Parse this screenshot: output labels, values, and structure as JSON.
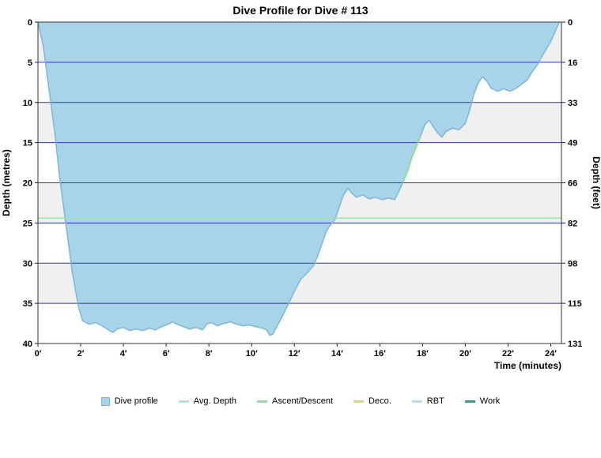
{
  "window": {
    "title": "Dive Profile for Dive # 113"
  },
  "chart_data": {
    "type": "area",
    "title": "Dive Profile for Dive # 113",
    "xlabel": "Time (minutes)",
    "ylabel_left": "Depth (metres)",
    "ylabel_right": "Depth (feet)",
    "xlim": [
      0,
      24.5
    ],
    "ylim": [
      0,
      40
    ],
    "x_ticks": {
      "values": [
        0,
        2,
        4,
        6,
        8,
        10,
        12,
        14,
        16,
        18,
        20,
        22,
        24
      ],
      "suffix": "′"
    },
    "y_ticks_left": [
      0,
      5,
      10,
      15,
      20,
      25,
      30,
      35,
      40
    ],
    "y_ticks_right": {
      "values_feet": [
        0,
        16,
        33,
        49,
        66,
        82,
        98,
        115,
        131
      ],
      "at_metres": [
        0,
        5,
        10,
        15,
        20,
        25,
        30,
        35,
        40
      ]
    },
    "grid": {
      "line_color": "#3333b3",
      "band_color": "#f0f0f0",
      "band_ranges_metres": [
        [
          0,
          5
        ],
        [
          10,
          15
        ],
        [
          20,
          25
        ],
        [
          30,
          35
        ]
      ],
      "border_color": "#333333"
    },
    "series": [
      {
        "name": "Dive profile",
        "type": "area",
        "fill": "#a8d4ea",
        "stroke": "#7db6d6",
        "points": [
          [
            0,
            0
          ],
          [
            0.25,
            3
          ],
          [
            0.5,
            8
          ],
          [
            0.8,
            14
          ],
          [
            1,
            19
          ],
          [
            1.3,
            25
          ],
          [
            1.6,
            31
          ],
          [
            1.9,
            35.5
          ],
          [
            2.1,
            37.2
          ],
          [
            2.4,
            37.6
          ],
          [
            2.7,
            37.4
          ],
          [
            3,
            37.8
          ],
          [
            3.3,
            38.3
          ],
          [
            3.5,
            38.6
          ],
          [
            3.7,
            38.2
          ],
          [
            4,
            38
          ],
          [
            4.3,
            38.4
          ],
          [
            4.6,
            38.2
          ],
          [
            4.9,
            38.4
          ],
          [
            5.2,
            38.1
          ],
          [
            5.5,
            38.3
          ],
          [
            5.8,
            37.9
          ],
          [
            6.1,
            37.6
          ],
          [
            6.3,
            37.3
          ],
          [
            6.5,
            37.6
          ],
          [
            6.8,
            37.9
          ],
          [
            7.1,
            38.2
          ],
          [
            7.4,
            38
          ],
          [
            7.7,
            38.3
          ],
          [
            7.9,
            37.6
          ],
          [
            8.1,
            37.4
          ],
          [
            8.4,
            37.8
          ],
          [
            8.7,
            37.5
          ],
          [
            9,
            37.3
          ],
          [
            9.3,
            37.6
          ],
          [
            9.6,
            37.8
          ],
          [
            9.9,
            37.7
          ],
          [
            10.2,
            37.9
          ],
          [
            10.5,
            38.1
          ],
          [
            10.7,
            38.3
          ],
          [
            10.85,
            39
          ],
          [
            11,
            38.8
          ],
          [
            11.2,
            37.8
          ],
          [
            11.4,
            36.8
          ],
          [
            11.7,
            35.2
          ],
          [
            12,
            33.5
          ],
          [
            12.3,
            32
          ],
          [
            12.6,
            31.2
          ],
          [
            12.9,
            30.3
          ],
          [
            13.1,
            29
          ],
          [
            13.3,
            27.5
          ],
          [
            13.5,
            26
          ],
          [
            13.7,
            25.2
          ],
          [
            13.9,
            24.6
          ],
          [
            14.1,
            23
          ],
          [
            14.3,
            21.5
          ],
          [
            14.5,
            20.7
          ],
          [
            14.7,
            21.3
          ],
          [
            14.9,
            21.8
          ],
          [
            15.2,
            21.5
          ],
          [
            15.5,
            22
          ],
          [
            15.8,
            21.8
          ],
          [
            16.1,
            22.1
          ],
          [
            16.4,
            21.9
          ],
          [
            16.7,
            22.1
          ],
          [
            16.9,
            21
          ],
          [
            17.1,
            19.8
          ],
          [
            17.3,
            18.5
          ],
          [
            17.5,
            16.8
          ],
          [
            17.7,
            15.5
          ],
          [
            17.9,
            14.2
          ],
          [
            18.1,
            12.8
          ],
          [
            18.3,
            12.2
          ],
          [
            18.5,
            13
          ],
          [
            18.7,
            13.8
          ],
          [
            18.9,
            14.3
          ],
          [
            19.1,
            13.6
          ],
          [
            19.4,
            13.2
          ],
          [
            19.7,
            13.4
          ],
          [
            20,
            12.6
          ],
          [
            20.2,
            11
          ],
          [
            20.4,
            9
          ],
          [
            20.6,
            7.6
          ],
          [
            20.8,
            6.8
          ],
          [
            21,
            7.3
          ],
          [
            21.2,
            8.2
          ],
          [
            21.5,
            8.6
          ],
          [
            21.8,
            8.3
          ],
          [
            22.1,
            8.6
          ],
          [
            22.4,
            8.2
          ],
          [
            22.6,
            7.8
          ],
          [
            22.9,
            7.2
          ],
          [
            23.1,
            6.3
          ],
          [
            23.4,
            5.2
          ],
          [
            23.6,
            4.2
          ],
          [
            23.8,
            3.3
          ],
          [
            24,
            2.4
          ],
          [
            24.2,
            1.2
          ],
          [
            24.4,
            0
          ]
        ]
      },
      {
        "name": "Avg. Depth",
        "type": "hline",
        "color": "#9fe2b4",
        "value_metres": 24.4
      },
      {
        "name": "Ascent/Descent",
        "type": "segment",
        "color": "#8fe08f",
        "points": [
          [
            17.1,
            19.8
          ],
          [
            17.3,
            18.5
          ],
          [
            17.5,
            16.8
          ],
          [
            17.7,
            15.5
          ],
          [
            17.9,
            14.2
          ]
        ]
      },
      {
        "name": "Deco.",
        "type": "none",
        "color": "#d8d874"
      },
      {
        "name": "RBT",
        "type": "none",
        "color": "#b0ddf2"
      },
      {
        "name": "Work",
        "type": "none",
        "color": "#2fa090"
      }
    ]
  },
  "legend": {
    "items": [
      {
        "label": "Dive profile",
        "shape": "square",
        "color": "#a8d4ea",
        "border": "#7db6d6"
      },
      {
        "label": "Avg. Depth",
        "shape": "line",
        "color": "#b0e6c8"
      },
      {
        "label": "Ascent/Descent",
        "shape": "line",
        "color": "#94e094"
      },
      {
        "label": "Deco.",
        "shape": "line",
        "color": "#d8d874"
      },
      {
        "label": "RBT",
        "shape": "line",
        "color": "#b0ddf2"
      },
      {
        "label": "Work",
        "shape": "line",
        "color": "#2fa090"
      }
    ]
  }
}
